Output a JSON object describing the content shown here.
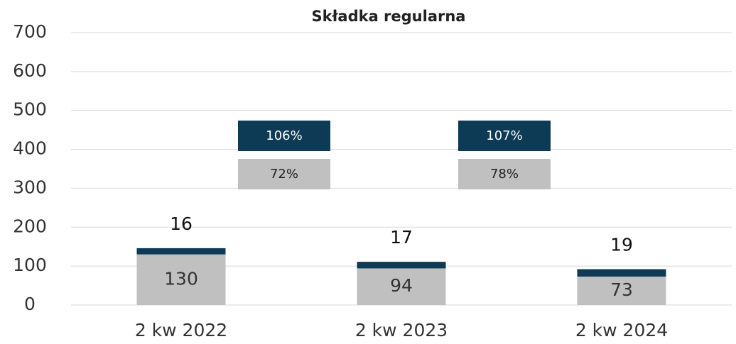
{
  "chart_data": {
    "type": "stacked_bar",
    "title": "Składka regularna",
    "categories": [
      "2 kw 2022",
      "2 kw 2023",
      "2 kw 2024"
    ],
    "series": [
      {
        "color": "#c0c0c0",
        "values": [
          130,
          94,
          73
        ]
      },
      {
        "color": "#0d3a55",
        "values": [
          16,
          17,
          19
        ]
      }
    ],
    "ylim": [
      0,
      700
    ],
    "yticks": [
      0,
      100,
      200,
      300,
      400,
      500,
      600,
      700
    ],
    "grid": true,
    "annotations": [
      {
        "top": "106%",
        "bottom": "72%"
      },
      {
        "top": "107%",
        "bottom": "78%"
      }
    ]
  }
}
